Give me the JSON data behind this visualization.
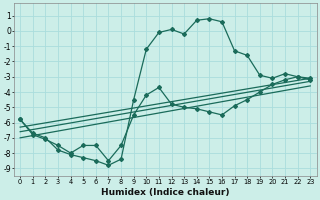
{
  "xlabel": "Humidex (Indice chaleur)",
  "bg_color": "#cceee8",
  "grid_color": "#aadddd",
  "line_color": "#1a6b5a",
  "x_ticks": [
    0,
    1,
    2,
    3,
    4,
    5,
    6,
    7,
    8,
    9,
    10,
    11,
    12,
    13,
    14,
    15,
    16,
    17,
    18,
    19,
    20,
    21,
    22,
    23
  ],
  "y_ticks": [
    1,
    0,
    -1,
    -2,
    -3,
    -4,
    -5,
    -6,
    -7,
    -8,
    -9
  ],
  "ylim": [
    -9.5,
    1.8
  ],
  "xlim": [
    -0.5,
    23.5
  ],
  "curve1_x": [
    0,
    1,
    2,
    3,
    4,
    5,
    6,
    7,
    8,
    9,
    10,
    11,
    12,
    13,
    14,
    15,
    16,
    17,
    18,
    19,
    20,
    21,
    22,
    23
  ],
  "curve1_y": [
    -5.8,
    -6.7,
    -7.0,
    -7.8,
    -8.1,
    -8.3,
    -8.5,
    -8.8,
    -8.4,
    -4.5,
    -1.2,
    -0.1,
    0.1,
    -0.2,
    0.7,
    0.8,
    0.6,
    -1.3,
    -1.6,
    -2.9,
    -3.1,
    -2.8,
    -3.0,
    -3.2
  ],
  "curve2_x": [
    0,
    1,
    2,
    3,
    4,
    5,
    6,
    7,
    8,
    9,
    10,
    11,
    12,
    13,
    14,
    15,
    16,
    17,
    18,
    19,
    20,
    21,
    22,
    23
  ],
  "curve2_y": [
    -5.8,
    -6.8,
    -7.1,
    -7.5,
    -8.0,
    -7.5,
    -7.5,
    -8.5,
    -7.5,
    -5.5,
    -4.2,
    -3.7,
    -4.8,
    -5.0,
    -5.1,
    -5.3,
    -5.5,
    -4.9,
    -4.5,
    -4.0,
    -3.5,
    -3.2,
    -3.0,
    -3.1
  ],
  "trend1_x": [
    0,
    23
  ],
  "trend1_y": [
    -6.3,
    -3.1
  ],
  "trend2_x": [
    0,
    23
  ],
  "trend2_y": [
    -6.6,
    -3.3
  ],
  "trend3_x": [
    0,
    23
  ],
  "trend3_y": [
    -7.0,
    -3.6
  ]
}
